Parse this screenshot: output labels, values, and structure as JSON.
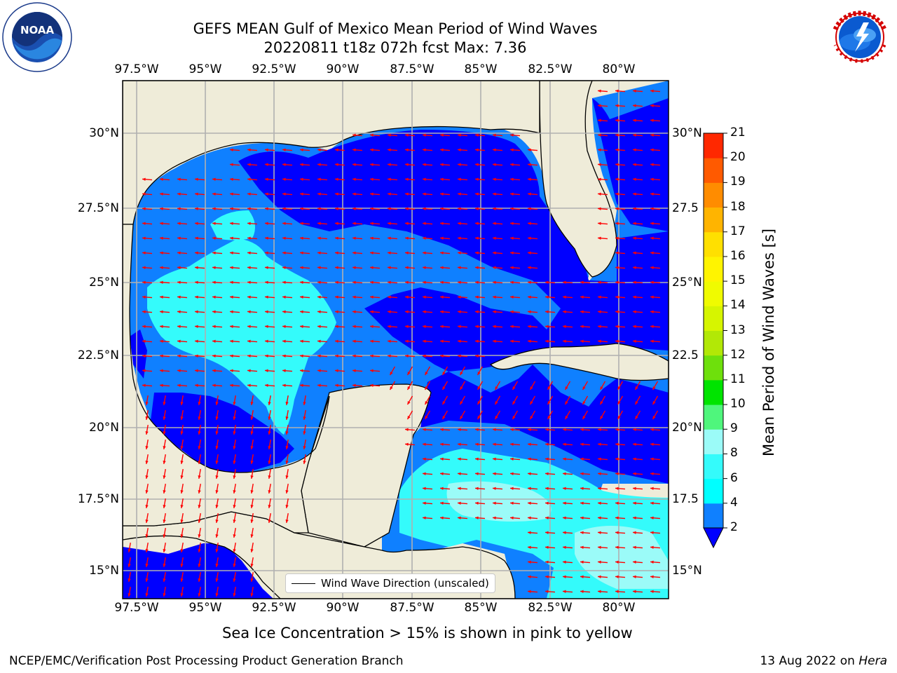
{
  "header": {
    "title_line1": "GEFS MEAN Gulf of Mexico Mean Period of Wind Waves",
    "title_line2": "20220811 t18z 072h fcst   Max: 7.36"
  },
  "logos": {
    "noaa_text": "NOAA",
    "noaa_ring_text": "NATIONAL OCEANIC AND ATMOSPHERIC ADMINISTRATION · U.S. DEPARTMENT OF COMMERCE",
    "nws_ring_text": "NATIONAL WEATHER SERVICE"
  },
  "map": {
    "lon_labels": [
      "97.5°W",
      "95°W",
      "92.5°W",
      "90°W",
      "87.5°W",
      "85°W",
      "82.5°W",
      "80°W"
    ],
    "lon_values": [
      -97.5,
      -95,
      -92.5,
      -90,
      -87.5,
      -85,
      -82.5,
      -80
    ],
    "lat_labels_left": [
      "30°N",
      "27.5°N",
      "25°N",
      "22.5°N",
      "20°N",
      "17.5°N",
      "15°N"
    ],
    "lat_labels_right": [
      "30°N",
      "27.5",
      "25°N",
      "22.5",
      "20°N",
      "17.5",
      "15°N"
    ],
    "lat_values": [
      30,
      27.5,
      25,
      22.5,
      20,
      17.5,
      15
    ],
    "extent": {
      "lon_min": -98,
      "lon_max": -78.2,
      "lat_min": 14,
      "lat_max": 31.6
    },
    "grid": true,
    "colors": {
      "land": "#efecd9",
      "water_light": "#34fbfb",
      "water_mid": "#0f80ff",
      "water_deep": "#0000ff",
      "arrow": "#ff0000",
      "grid": "#b0b0b0"
    }
  },
  "legend": {
    "label": "Wind Wave Direction (unscaled)"
  },
  "colorbar": {
    "title": "Mean Period of Wind Waves [s]",
    "ticks": [
      "2",
      "4",
      "6",
      "8",
      "9",
      "10",
      "11",
      "12",
      "13",
      "14",
      "15",
      "16",
      "17",
      "18",
      "19",
      "20",
      "21"
    ],
    "colors": [
      "#0f80ff",
      "#00ffff",
      "#34fbfb",
      "#9bfbf8",
      "#4ff67c",
      "#00e400",
      "#6ee00c",
      "#b2e806",
      "#d6f500",
      "#f0fb00",
      "#fff400",
      "#ffe000",
      "#ffb400",
      "#ff8c00",
      "#ff5a00",
      "#ff2800"
    ],
    "extend_min_color": "#0000ff"
  },
  "note": "Sea Ice Concentration > 15% is shown in pink to yellow",
  "footer": {
    "left": "NCEP/EMC/Verification Post Processing Product Generation Branch",
    "right_date": "13 Aug 2022 on ",
    "right_host": "Hera"
  }
}
